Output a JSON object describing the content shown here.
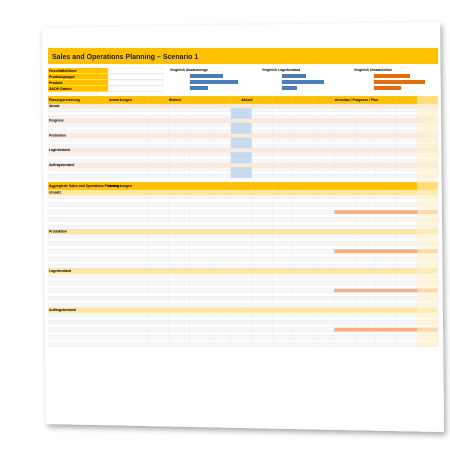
{
  "title": "Sales and Operations Planning – Scenario 1",
  "header_fields": [
    "Geschäftsführer",
    "Produktgruppe",
    "Produkt",
    "S&OP-Datum"
  ],
  "mini_charts": [
    {
      "title": "Vergleich Absatzmenge",
      "color": "#4a7ebb",
      "bars": [
        55,
        80,
        30
      ]
    },
    {
      "title": "Vergleich Lagerbestand",
      "color": "#4a7ebb",
      "bars": [
        40,
        70,
        25
      ]
    },
    {
      "title": "Vergleich Umsatzerlöse",
      "color": "#e46c0a",
      "bars": [
        60,
        85,
        45
      ]
    }
  ],
  "section1": {
    "headers": [
      "Planungsrechnung",
      "Anmerkungen",
      "Historie",
      "Aktuell",
      "Vorschau / Prognose / Plan"
    ],
    "rows": [
      "Absatz",
      "Prognose",
      "Produktion",
      "Lagerbestand",
      "Auftragsbestand"
    ]
  },
  "section2": {
    "headers": [
      "Aggregierte Sales and Operations Planning",
      "Anmerkungen"
    ],
    "groups": [
      "Umsatz",
      "Produktion",
      "Lagerbestand",
      "Auftragsbestand"
    ]
  }
}
